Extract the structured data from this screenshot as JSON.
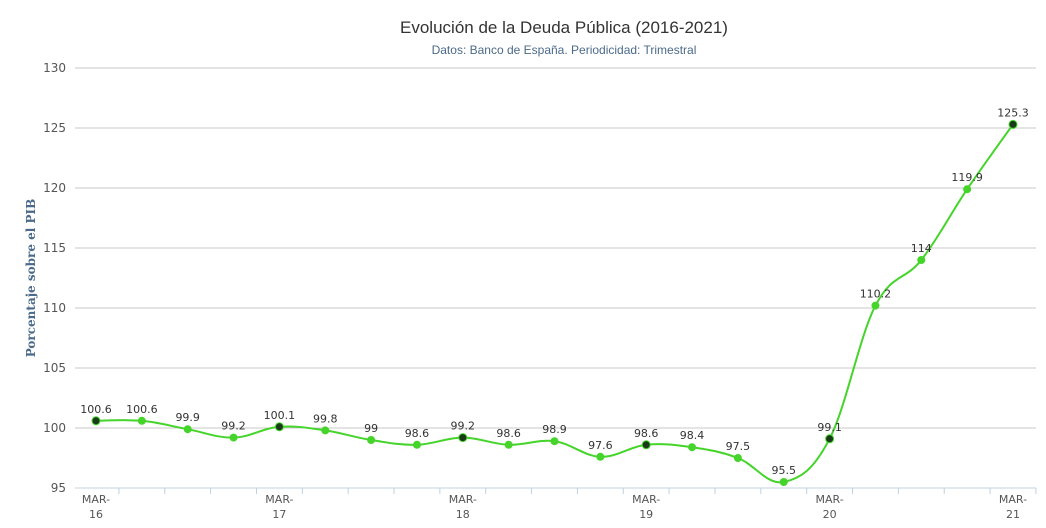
{
  "chart_data": {
    "type": "line",
    "title": "Evolución de la Deuda Pública (2016-2021)",
    "subtitle": "Datos: Banco de España. Periodicidad: Trimestral",
    "ylabel": "Porcentaje sobre el PIB",
    "ylim": [
      95,
      130
    ],
    "yticks": [
      95,
      100,
      105,
      110,
      115,
      120,
      125,
      130
    ],
    "xticks": [
      {
        "index": 0,
        "line1": "MAR-",
        "line2": "16"
      },
      {
        "index": 4,
        "line1": "MAR-",
        "line2": "17"
      },
      {
        "index": 8,
        "line1": "MAR-",
        "line2": "18"
      },
      {
        "index": 12,
        "line1": "MAR-",
        "line2": "19"
      },
      {
        "index": 16,
        "line1": "MAR-",
        "line2": "20"
      },
      {
        "index": 20,
        "line1": "MAR-",
        "line2": "21"
      }
    ],
    "values": [
      100.6,
      100.6,
      99.9,
      99.2,
      100.1,
      99.8,
      99,
      98.6,
      99.2,
      98.6,
      98.9,
      97.6,
      98.6,
      98.4,
      97.5,
      95.5,
      99.1,
      110.2,
      114,
      119.9,
      125.3
    ],
    "labels": [
      "100.6",
      "100.6",
      "99.9",
      "99.2",
      "100.1",
      "99.8",
      "99",
      "98.6",
      "99.2",
      "98.6",
      "98.9",
      "97.6",
      "98.6",
      "98.4",
      "97.5",
      "95.5",
      "99.1",
      "110.2",
      "114",
      "119.9",
      "125.3"
    ],
    "grid": true,
    "legend": "none",
    "line_color": "#44d42a",
    "marker_color": "#44d42a",
    "highlight_marker_color": "#1a3a1a"
  }
}
